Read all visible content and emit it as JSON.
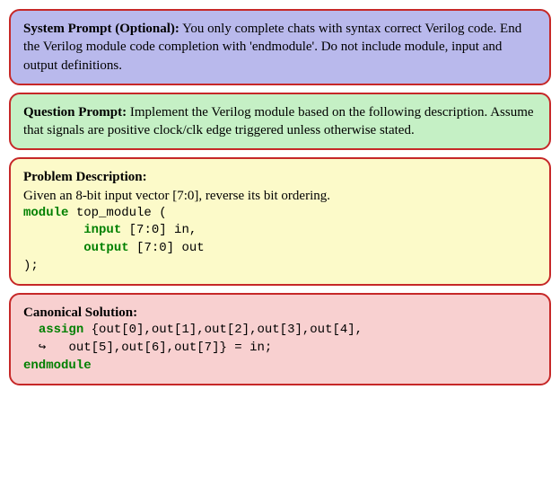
{
  "boxes": [
    {
      "type": "system",
      "bg": "#b9b9ec",
      "border": "#c62828",
      "heading": "System Prompt (Optional):",
      "body": "You only complete chats with syntax correct Verilog code. End the Verilog module code completion with 'endmodule'. Do not include module, input and output definitions."
    },
    {
      "type": "question",
      "bg": "#c5f0c5",
      "border": "#c62828",
      "heading": "Question Prompt:",
      "body": "Implement the Verilog module based on the following description. Assume that signals are positive clock/clk edge triggered unless otherwise stated."
    },
    {
      "type": "problem",
      "bg": "#fcfac9",
      "border": "#c62828",
      "heading": "Problem Description:",
      "body": "Given an 8-bit input vector [7:0], reverse its bit ordering.",
      "code": {
        "kw_module": "module",
        "module_name": " top_module (",
        "kw_input": "input",
        "input_rest": " [7:0] in,",
        "kw_output": "output",
        "output_rest": " [7:0] out",
        "close": ");"
      }
    },
    {
      "type": "solution",
      "bg": "#f8d0d0",
      "border": "#c62828",
      "heading": "Canonical Solution:",
      "code": {
        "kw_assign": "assign",
        "line1_rest": " {out[0],out[1],out[2],out[3],out[4],",
        "arrow": "↪",
        "line2_rest": "   out[5],out[6],out[7]} = in;",
        "kw_endmodule": "endmodule"
      }
    }
  ],
  "colors": {
    "keyword": "#008000",
    "text": "#000000"
  }
}
